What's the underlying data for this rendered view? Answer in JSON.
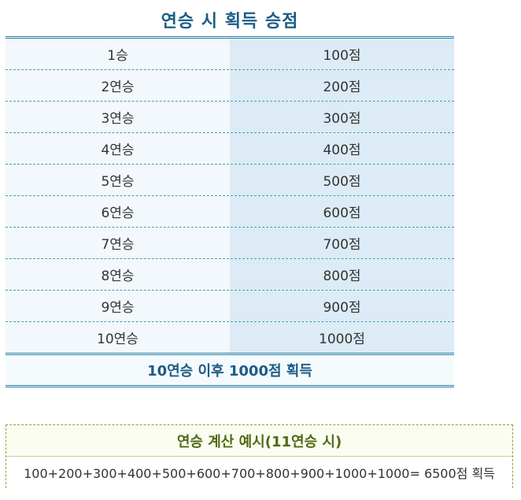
{
  "title": "연승 시 획득 승점",
  "rows": [
    {
      "streak": "1승",
      "points": "100점"
    },
    {
      "streak": "2연승",
      "points": "200점"
    },
    {
      "streak": "3연승",
      "points": "300점"
    },
    {
      "streak": "4연승",
      "points": "400점"
    },
    {
      "streak": "5연승",
      "points": "500점"
    },
    {
      "streak": "6연승",
      "points": "600점"
    },
    {
      "streak": "7연승",
      "points": "700점"
    },
    {
      "streak": "8연승",
      "points": "800점"
    },
    {
      "streak": "9연승",
      "points": "900점"
    },
    {
      "streak": "10연승",
      "points": "1000점"
    }
  ],
  "summary": "10연승 이후 1000점 획득",
  "example": {
    "title": "연승 계산 예시(11연승 시)",
    "formula": "100+200+300+400+500+600+700+800+900+1000+1000=  6500점 획득"
  },
  "colors": {
    "title": "#1b5c86",
    "table_border": "#2a7ea6",
    "left_cell_bg": "#f2f8fc",
    "right_cell_bg": "#dcebf6",
    "example_title": "#4f6a16",
    "example_border": "#8aa23a"
  }
}
